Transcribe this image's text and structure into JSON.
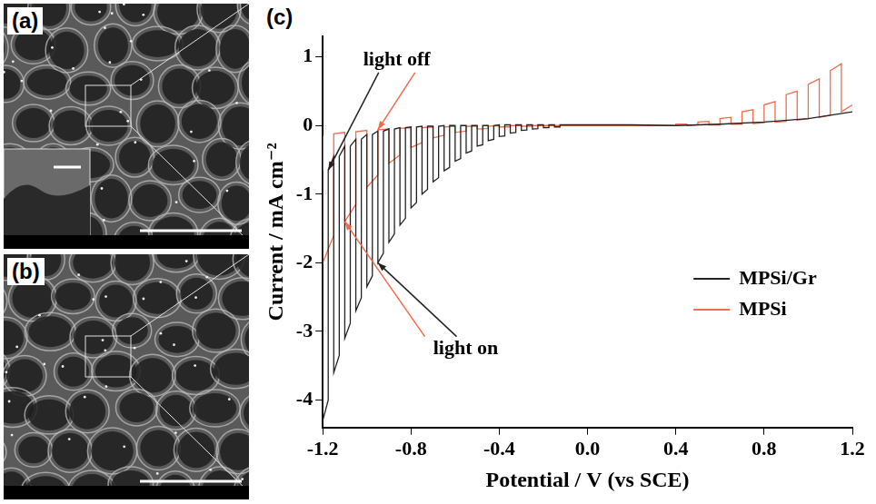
{
  "panel_labels": [
    "(a)",
    "(b)",
    "(c)"
  ],
  "chart_data": {
    "type": "line",
    "x_label": "Potential / V (vs SCE)",
    "y_label": "Current / mA cm⁻²",
    "annotations": [
      "light off",
      "light on"
    ],
    "xlim": [
      -1.2,
      1.2
    ],
    "xticks": [
      -1.2,
      -0.8,
      -0.4,
      {
        "value": 0,
        "label": "0.0"
      },
      0.4,
      0.8,
      1.2
    ],
    "ylim": [
      -4.4,
      1.3
    ],
    "yticks": [
      -4,
      -3,
      -2,
      -1,
      0,
      1
    ],
    "grid": false,
    "legend": "bottom-right",
    "series": [
      {
        "name": "MPSi/Gr",
        "color": "#222222",
        "x": [
          -1.2,
          -1.2,
          -1.175,
          -1.175,
          -1.15,
          -1.15,
          -1.125,
          -1.125,
          -1.1,
          -1.1,
          -1.075,
          -1.075,
          -1.05,
          -1.05,
          -1.025,
          -1.025,
          -1.0,
          -1.0,
          -0.975,
          -0.975,
          -0.95,
          -0.95,
          -0.925,
          -0.925,
          -0.9,
          -0.9,
          -0.875,
          -0.875,
          -0.85,
          -0.85,
          -0.825,
          -0.825,
          -0.8,
          -0.8,
          -0.775,
          -0.775,
          -0.75,
          -0.75,
          -0.725,
          -0.725,
          -0.7,
          -0.7,
          -0.675,
          -0.675,
          -0.65,
          -0.65,
          -0.625,
          -0.625,
          -0.6,
          -0.6,
          -0.575,
          -0.575,
          -0.55,
          -0.55,
          -0.525,
          -0.525,
          -0.5,
          -0.5,
          -0.475,
          -0.475,
          -0.45,
          -0.45,
          -0.425,
          -0.425,
          -0.4,
          -0.4,
          -0.375,
          -0.375,
          -0.35,
          -0.35,
          -0.325,
          -0.325,
          -0.3,
          -0.3,
          -0.275,
          -0.275,
          -0.25,
          -0.25,
          -0.225,
          -0.225,
          -0.2,
          -0.2,
          -0.175,
          -0.175,
          -0.15,
          -0.15,
          -0.125,
          -0.125,
          -0.1,
          0.0,
          0.2,
          0.4,
          0.6,
          0.8,
          1.0,
          1.1,
          1.2
        ],
        "values": [
          -0.65,
          -4.3,
          -4.0,
          -0.65,
          -0.45,
          -3.6,
          -3.35,
          -0.45,
          -0.3,
          -3.1,
          -2.88,
          -0.3,
          -0.2,
          -2.7,
          -2.51,
          -0.2,
          -0.13,
          -2.35,
          -2.19,
          -0.13,
          -0.08,
          -2.0,
          -1.86,
          -0.08,
          -0.05,
          -1.7,
          -1.58,
          -0.05,
          -0.03,
          -1.45,
          -1.35,
          -0.03,
          -0.02,
          -1.2,
          -1.12,
          -0.02,
          -0.01,
          -1.0,
          -0.93,
          -0.01,
          -0.01,
          -0.82,
          -0.76,
          -0.01,
          0,
          -0.66,
          -0.61,
          0,
          0,
          -0.52,
          -0.48,
          0,
          0,
          -0.4,
          -0.37,
          0,
          0,
          -0.3,
          -0.28,
          0,
          0,
          -0.22,
          -0.2,
          0,
          0.01,
          -0.16,
          -0.15,
          0.01,
          0.01,
          -0.11,
          -0.1,
          0.01,
          0.01,
          -0.07,
          -0.065,
          0.01,
          0.01,
          -0.05,
          -0.045,
          0.01,
          0.01,
          -0.03,
          -0.03,
          0.01,
          0.01,
          -0.02,
          -0.02,
          0.01,
          0.01,
          0.01,
          0.01,
          0.0,
          0.02,
          0.05,
          0.1,
          0.15,
          0.2
        ]
      },
      {
        "name": "MPSi",
        "color": "#f26b4a",
        "x": [
          -1.2,
          -1.2,
          -1.15,
          -1.15,
          -1.1,
          -1.1,
          -1.05,
          -1.05,
          -1.0,
          -1.0,
          -0.95,
          -0.95,
          -0.9,
          -0.9,
          -0.85,
          -0.85,
          -0.8,
          -0.8,
          -0.75,
          -0.75,
          -0.7,
          -0.7,
          -0.65,
          -0.65,
          -0.6,
          -0.6,
          -0.55,
          -0.55,
          -0.5,
          -0.5,
          -0.45,
          -0.45,
          -0.4,
          -0.4,
          -0.35,
          -0.35,
          -0.3,
          -0.3,
          -0.25,
          -0.25,
          0.0,
          0.2,
          0.4,
          0.4,
          0.45,
          0.45,
          0.5,
          0.5,
          0.55,
          0.55,
          0.6,
          0.6,
          0.65,
          0.65,
          0.7,
          0.7,
          0.75,
          0.75,
          0.8,
          0.8,
          0.85,
          0.85,
          0.9,
          0.9,
          0.95,
          0.95,
          1.0,
          1.0,
          1.05,
          1.05,
          1.1,
          1.1,
          1.15,
          1.15,
          1.2
        ],
        "values": [
          -0.15,
          -2.0,
          -1.6,
          -0.12,
          -0.1,
          -1.4,
          -1.15,
          -0.09,
          -0.07,
          -0.9,
          -0.72,
          -0.06,
          -0.05,
          -0.55,
          -0.43,
          -0.04,
          -0.03,
          -0.32,
          -0.25,
          -0.03,
          -0.02,
          -0.18,
          -0.14,
          -0.02,
          -0.01,
          -0.1,
          -0.08,
          -0.01,
          -0.01,
          -0.05,
          -0.04,
          -0.01,
          0,
          -0.02,
          -0.02,
          0,
          0,
          -0.01,
          -0.01,
          0,
          0,
          0,
          0,
          0.02,
          0.02,
          0,
          0.01,
          0.05,
          0.06,
          0.01,
          0.01,
          0.1,
          0.12,
          0.02,
          0.02,
          0.2,
          0.23,
          0.03,
          0.04,
          0.3,
          0.35,
          0.05,
          0.06,
          0.45,
          0.5,
          0.08,
          0.1,
          0.6,
          0.68,
          0.12,
          0.15,
          0.8,
          0.9,
          0.2,
          0.3
        ]
      }
    ]
  }
}
